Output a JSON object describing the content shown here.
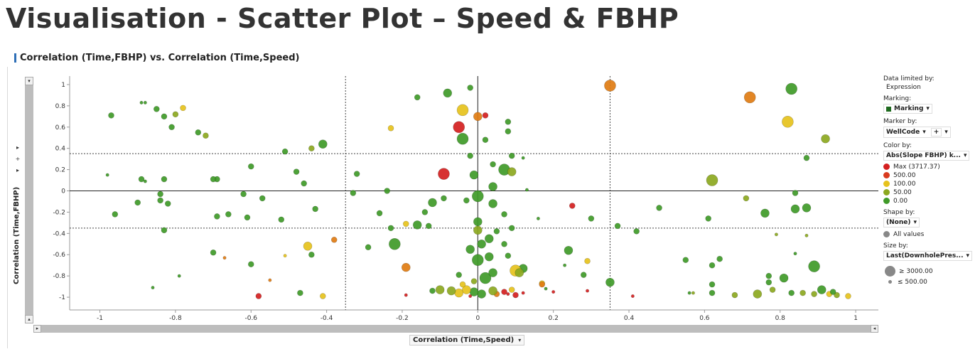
{
  "page_title": "Visualisation - Scatter Plot – Speed & FBHP",
  "viz_title": "Correlation (Time,FBHP) vs. Correlation (Time,Speed)",
  "chart_data": {
    "type": "scatter",
    "title": "Correlation (Time,FBHP) vs. Correlation (Time,Speed)",
    "xlabel": "Correlation (Time,Speed)",
    "ylabel": "Correlation (Time,FBHP)",
    "xlim": [
      -1.08,
      1.06
    ],
    "ylim": [
      -1.12,
      1.08
    ],
    "xticks": [
      -1,
      -0.8,
      -0.6,
      -0.4,
      -0.2,
      0,
      0.2,
      0.4,
      0.6,
      0.8,
      1
    ],
    "yticks": [
      1,
      0.8,
      0.6,
      0.4,
      0.2,
      0,
      -0.2,
      -0.4,
      -0.6,
      -0.8,
      -1
    ],
    "xtick_labels": [
      "-1",
      "-0.8",
      "-0.6",
      "-0.4",
      "-0.2",
      "0",
      "0.2",
      "0.4",
      "0.6",
      "0.8",
      "1"
    ],
    "ytick_labels": [
      "1",
      "0.8",
      "0.6",
      "0.4",
      "0.2",
      "0",
      "-0.2",
      "-0.4",
      "-0.6",
      "-0.8",
      "-1"
    ],
    "reference_lines": {
      "x_dotted": [
        -0.35,
        0.35
      ],
      "y_dotted": [
        0.35,
        -0.35
      ],
      "x_solid": 0,
      "y_solid": 0
    },
    "grid": false,
    "legend_position": "right",
    "colors": {
      "max": "#d42020",
      "500": "#d93a1f",
      "100": "#e6c21c",
      "50": "#8ca81f",
      "0": "#3f9a28",
      "orange": "#e07c12"
    },
    "points": [
      {
        "x": 0.35,
        "y": 0.99,
        "s": 3,
        "c": "orange"
      },
      {
        "x": 0.83,
        "y": 0.96,
        "s": 3,
        "c": "0"
      },
      {
        "x": 0.72,
        "y": 0.88,
        "s": 3,
        "c": "orange"
      },
      {
        "x": 0.82,
        "y": 0.65,
        "s": 3,
        "c": "100"
      },
      {
        "x": 0.92,
        "y": 0.49,
        "s": 2,
        "c": "50"
      },
      {
        "x": 0.62,
        "y": 0.1,
        "s": 3,
        "c": "50"
      },
      {
        "x": 0.87,
        "y": 0.31,
        "s": 1,
        "c": "0"
      },
      {
        "x": 0.84,
        "y": -0.02,
        "s": 1,
        "c": "0"
      },
      {
        "x": 0.71,
        "y": -0.07,
        "s": 1,
        "c": "50"
      },
      {
        "x": 0.76,
        "y": -0.21,
        "s": 2,
        "c": "0"
      },
      {
        "x": 0.84,
        "y": -0.17,
        "s": 2,
        "c": "0"
      },
      {
        "x": 0.87,
        "y": -0.16,
        "s": 2,
        "c": "0"
      },
      {
        "x": 0.48,
        "y": -0.16,
        "s": 1,
        "c": "0"
      },
      {
        "x": 0.61,
        "y": -0.26,
        "s": 1,
        "c": "0"
      },
      {
        "x": 0.87,
        "y": -0.42,
        "s": 0,
        "c": "50"
      },
      {
        "x": 0.79,
        "y": -0.41,
        "s": 0,
        "c": "50"
      },
      {
        "x": 0.84,
        "y": -0.59,
        "s": 0,
        "c": "0"
      },
      {
        "x": 0.89,
        "y": -0.71,
        "s": 3,
        "c": "0"
      },
      {
        "x": 0.64,
        "y": -0.64,
        "s": 1,
        "c": "0"
      },
      {
        "x": 0.62,
        "y": -0.7,
        "s": 1,
        "c": "0"
      },
      {
        "x": 0.55,
        "y": -0.65,
        "s": 1,
        "c": "0"
      },
      {
        "x": 0.77,
        "y": -0.8,
        "s": 1,
        "c": "0"
      },
      {
        "x": 0.81,
        "y": -0.82,
        "s": 2,
        "c": "0"
      },
      {
        "x": 0.77,
        "y": -0.86,
        "s": 1,
        "c": "0"
      },
      {
        "x": 0.62,
        "y": -0.88,
        "s": 1,
        "c": "0"
      },
      {
        "x": 0.78,
        "y": -0.93,
        "s": 1,
        "c": "50"
      },
      {
        "x": 0.74,
        "y": -0.97,
        "s": 2,
        "c": "50"
      },
      {
        "x": 0.68,
        "y": -0.98,
        "s": 1,
        "c": "50"
      },
      {
        "x": 0.62,
        "y": -0.96,
        "s": 1,
        "c": "0"
      },
      {
        "x": 0.56,
        "y": -0.96,
        "s": 0,
        "c": "0"
      },
      {
        "x": 0.57,
        "y": -0.96,
        "s": 0,
        "c": "50"
      },
      {
        "x": 0.83,
        "y": -0.96,
        "s": 1,
        "c": "0"
      },
      {
        "x": 0.86,
        "y": -0.96,
        "s": 1,
        "c": "50"
      },
      {
        "x": 0.89,
        "y": -0.97,
        "s": 1,
        "c": "50"
      },
      {
        "x": 0.91,
        "y": -0.93,
        "s": 2,
        "c": "0"
      },
      {
        "x": 0.93,
        "y": -0.97,
        "s": 1,
        "c": "100"
      },
      {
        "x": 0.95,
        "y": -0.98,
        "s": 1,
        "c": "50"
      },
      {
        "x": 0.98,
        "y": -0.99,
        "s": 1,
        "c": "100"
      },
      {
        "x": 0.94,
        "y": -0.95,
        "s": 1,
        "c": "0"
      },
      {
        "x": 0.41,
        "y": -0.99,
        "s": 0,
        "c": "max"
      },
      {
        "x": 0.37,
        "y": -0.33,
        "s": 1,
        "c": "0"
      },
      {
        "x": 0.42,
        "y": -0.38,
        "s": 1,
        "c": "0"
      },
      {
        "x": 0.35,
        "y": -0.86,
        "s": 2,
        "c": "0"
      },
      {
        "x": 0.3,
        "y": -0.26,
        "s": 1,
        "c": "0"
      },
      {
        "x": 0.24,
        "y": -0.56,
        "s": 2,
        "c": "0"
      },
      {
        "x": 0.29,
        "y": -0.66,
        "s": 1,
        "c": "100"
      },
      {
        "x": 0.28,
        "y": -0.79,
        "s": 1,
        "c": "0"
      },
      {
        "x": 0.25,
        "y": -0.14,
        "s": 1,
        "c": "max"
      },
      {
        "x": 0.29,
        "y": -0.94,
        "s": 0,
        "c": "max"
      },
      {
        "x": 0.23,
        "y": -0.7,
        "s": 0,
        "c": "0"
      },
      {
        "x": 0.17,
        "y": -0.87,
        "s": 1,
        "c": "100"
      },
      {
        "x": 0.17,
        "y": -0.88,
        "s": 1,
        "c": "orange"
      },
      {
        "x": 0.12,
        "y": -0.73,
        "s": 2,
        "c": "0"
      },
      {
        "x": 0.1,
        "y": -0.75,
        "s": 3,
        "c": "100"
      },
      {
        "x": 0.11,
        "y": -0.77,
        "s": 2,
        "c": "50"
      },
      {
        "x": 0.08,
        "y": -0.61,
        "s": 1,
        "c": "0"
      },
      {
        "x": 0.07,
        "y": -0.95,
        "s": 1,
        "c": "max"
      },
      {
        "x": 0.1,
        "y": -0.98,
        "s": 1,
        "c": "max"
      },
      {
        "x": 0.12,
        "y": -0.96,
        "s": 0,
        "c": "max"
      },
      {
        "x": 0.09,
        "y": -0.93,
        "s": 1,
        "c": "100"
      },
      {
        "x": 0.05,
        "y": -0.97,
        "s": 1,
        "c": "orange"
      },
      {
        "x": 0.04,
        "y": -0.94,
        "s": 2,
        "c": "50"
      },
      {
        "x": 0.01,
        "y": -0.97,
        "s": 2,
        "c": "0"
      },
      {
        "x": -0.01,
        "y": -0.95,
        "s": 2,
        "c": "0"
      },
      {
        "x": -0.03,
        "y": -0.93,
        "s": 2,
        "c": "100"
      },
      {
        "x": -0.05,
        "y": -0.96,
        "s": 2,
        "c": "100"
      },
      {
        "x": -0.07,
        "y": -0.94,
        "s": 2,
        "c": "50"
      },
      {
        "x": -0.1,
        "y": -0.93,
        "s": 2,
        "c": "50"
      },
      {
        "x": -0.12,
        "y": -0.94,
        "s": 1,
        "c": "0"
      },
      {
        "x": -0.19,
        "y": -0.98,
        "s": 0,
        "c": "max"
      },
      {
        "x": -0.02,
        "y": -0.99,
        "s": 0,
        "c": "max"
      },
      {
        "x": 0.02,
        "y": -0.82,
        "s": 3,
        "c": "0"
      },
      {
        "x": 0.04,
        "y": -0.77,
        "s": 2,
        "c": "0"
      },
      {
        "x": -0.01,
        "y": -0.85,
        "s": 1,
        "c": "50"
      },
      {
        "x": -0.04,
        "y": -0.88,
        "s": 1,
        "c": "100"
      },
      {
        "x": -0.05,
        "y": -0.79,
        "s": 1,
        "c": "0"
      },
      {
        "x": 0.0,
        "y": -0.65,
        "s": 3,
        "c": "0"
      },
      {
        "x": 0.03,
        "y": -0.62,
        "s": 2,
        "c": "0"
      },
      {
        "x": -0.02,
        "y": -0.55,
        "s": 2,
        "c": "0"
      },
      {
        "x": 0.01,
        "y": -0.5,
        "s": 2,
        "c": "0"
      },
      {
        "x": 0.03,
        "y": -0.45,
        "s": 2,
        "c": "0"
      },
      {
        "x": 0.0,
        "y": -0.37,
        "s": 2,
        "c": "50"
      },
      {
        "x": 0.07,
        "y": -0.5,
        "s": 1,
        "c": "0"
      },
      {
        "x": 0.09,
        "y": -0.35,
        "s": 1,
        "c": "0"
      },
      {
        "x": 0.05,
        "y": -0.38,
        "s": 1,
        "c": "0"
      },
      {
        "x": 0.0,
        "y": -0.29,
        "s": 2,
        "c": "0"
      },
      {
        "x": 0.07,
        "y": -0.22,
        "s": 1,
        "c": "0"
      },
      {
        "x": 0.0,
        "y": -0.05,
        "s": 3,
        "c": "0"
      },
      {
        "x": -0.03,
        "y": -0.09,
        "s": 1,
        "c": "0"
      },
      {
        "x": 0.04,
        "y": -0.12,
        "s": 2,
        "c": "0"
      },
      {
        "x": 0.04,
        "y": 0.04,
        "s": 2,
        "c": "0"
      },
      {
        "x": -0.01,
        "y": 0.15,
        "s": 2,
        "c": "0"
      },
      {
        "x": 0.07,
        "y": 0.2,
        "s": 3,
        "c": "0"
      },
      {
        "x": 0.09,
        "y": 0.18,
        "s": 2,
        "c": "50"
      },
      {
        "x": 0.04,
        "y": 0.25,
        "s": 1,
        "c": "0"
      },
      {
        "x": -0.09,
        "y": 0.16,
        "s": 3,
        "c": "max"
      },
      {
        "x": -0.02,
        "y": 0.33,
        "s": 1,
        "c": "0"
      },
      {
        "x": 0.09,
        "y": 0.33,
        "s": 1,
        "c": "0"
      },
      {
        "x": -0.04,
        "y": 0.49,
        "s": 3,
        "c": "0"
      },
      {
        "x": -0.05,
        "y": 0.6,
        "s": 3,
        "c": "max"
      },
      {
        "x": 0.0,
        "y": 0.7,
        "s": 2,
        "c": "orange"
      },
      {
        "x": -0.04,
        "y": 0.76,
        "s": 3,
        "c": "100"
      },
      {
        "x": -0.08,
        "y": 0.92,
        "s": 2,
        "c": "0"
      },
      {
        "x": -0.02,
        "y": 0.97,
        "s": 1,
        "c": "0"
      },
      {
        "x": 0.02,
        "y": 0.71,
        "s": 1,
        "c": "max"
      },
      {
        "x": 0.08,
        "y": 0.65,
        "s": 1,
        "c": "0"
      },
      {
        "x": 0.08,
        "y": 0.56,
        "s": 1,
        "c": "0"
      },
      {
        "x": 0.02,
        "y": 0.48,
        "s": 1,
        "c": "0"
      },
      {
        "x": -0.16,
        "y": 0.88,
        "s": 1,
        "c": "0"
      },
      {
        "x": -0.23,
        "y": 0.59,
        "s": 1,
        "c": "100"
      },
      {
        "x": -0.09,
        "y": -0.07,
        "s": 1,
        "c": "0"
      },
      {
        "x": -0.12,
        "y": -0.11,
        "s": 2,
        "c": "0"
      },
      {
        "x": -0.14,
        "y": -0.2,
        "s": 1,
        "c": "0"
      },
      {
        "x": -0.16,
        "y": -0.32,
        "s": 2,
        "c": "0"
      },
      {
        "x": -0.13,
        "y": -0.33,
        "s": 1,
        "c": "0"
      },
      {
        "x": -0.19,
        "y": -0.31,
        "s": 1,
        "c": "100"
      },
      {
        "x": -0.22,
        "y": -0.5,
        "s": 3,
        "c": "0"
      },
      {
        "x": -0.23,
        "y": -0.35,
        "s": 1,
        "c": "0"
      },
      {
        "x": -0.29,
        "y": -0.53,
        "s": 1,
        "c": "0"
      },
      {
        "x": -0.19,
        "y": -0.72,
        "s": 2,
        "c": "orange"
      },
      {
        "x": -0.26,
        "y": -0.21,
        "s": 1,
        "c": "0"
      },
      {
        "x": -0.24,
        "y": 0.0,
        "s": 1,
        "c": "0"
      },
      {
        "x": -0.32,
        "y": 0.16,
        "s": 1,
        "c": "0"
      },
      {
        "x": -0.33,
        "y": -0.02,
        "s": 1,
        "c": "0"
      },
      {
        "x": -0.38,
        "y": -0.46,
        "s": 1,
        "c": "orange"
      },
      {
        "x": -0.45,
        "y": -0.52,
        "s": 2,
        "c": "100"
      },
      {
        "x": -0.44,
        "y": -0.6,
        "s": 1,
        "c": "0"
      },
      {
        "x": -0.47,
        "y": -0.96,
        "s": 1,
        "c": "0"
      },
      {
        "x": -0.41,
        "y": -0.99,
        "s": 1,
        "c": "100"
      },
      {
        "x": -0.43,
        "y": -0.17,
        "s": 1,
        "c": "0"
      },
      {
        "x": -0.46,
        "y": 0.07,
        "s": 1,
        "c": "0"
      },
      {
        "x": -0.48,
        "y": 0.18,
        "s": 1,
        "c": "0"
      },
      {
        "x": -0.51,
        "y": 0.37,
        "s": 1,
        "c": "0"
      },
      {
        "x": -0.44,
        "y": 0.4,
        "s": 1,
        "c": "50"
      },
      {
        "x": -0.41,
        "y": 0.44,
        "s": 2,
        "c": "0"
      },
      {
        "x": -0.52,
        "y": -0.27,
        "s": 1,
        "c": "0"
      },
      {
        "x": -0.51,
        "y": -0.61,
        "s": 0,
        "c": "100"
      },
      {
        "x": -0.57,
        "y": -0.07,
        "s": 1,
        "c": "0"
      },
      {
        "x": -0.6,
        "y": 0.23,
        "s": 1,
        "c": "0"
      },
      {
        "x": -0.62,
        "y": -0.03,
        "s": 1,
        "c": "0"
      },
      {
        "x": -0.61,
        "y": -0.25,
        "s": 1,
        "c": "0"
      },
      {
        "x": -0.6,
        "y": -0.69,
        "s": 1,
        "c": "0"
      },
      {
        "x": -0.58,
        "y": -0.99,
        "s": 1,
        "c": "max"
      },
      {
        "x": -0.55,
        "y": -0.84,
        "s": 0,
        "c": "orange"
      },
      {
        "x": -0.66,
        "y": -0.22,
        "s": 1,
        "c": "0"
      },
      {
        "x": -0.69,
        "y": -0.24,
        "s": 1,
        "c": "0"
      },
      {
        "x": -0.69,
        "y": 0.11,
        "s": 1,
        "c": "0"
      },
      {
        "x": -0.7,
        "y": 0.11,
        "s": 1,
        "c": "0"
      },
      {
        "x": -0.7,
        "y": -0.58,
        "s": 1,
        "c": "0"
      },
      {
        "x": -0.67,
        "y": -0.63,
        "s": 0,
        "c": "orange"
      },
      {
        "x": -0.72,
        "y": 0.52,
        "s": 1,
        "c": "50"
      },
      {
        "x": -0.74,
        "y": 0.55,
        "s": 1,
        "c": "0"
      },
      {
        "x": -0.78,
        "y": 0.78,
        "s": 1,
        "c": "100"
      },
      {
        "x": -0.8,
        "y": 0.72,
        "s": 1,
        "c": "50"
      },
      {
        "x": -0.81,
        "y": 0.6,
        "s": 1,
        "c": "0"
      },
      {
        "x": -0.83,
        "y": 0.7,
        "s": 1,
        "c": "0"
      },
      {
        "x": -0.85,
        "y": 0.77,
        "s": 1,
        "c": "0"
      },
      {
        "x": -0.88,
        "y": 0.83,
        "s": 0,
        "c": "0"
      },
      {
        "x": -0.89,
        "y": 0.83,
        "s": 0,
        "c": "0"
      },
      {
        "x": -0.97,
        "y": 0.71,
        "s": 1,
        "c": "0"
      },
      {
        "x": -0.98,
        "y": 0.15,
        "s": 0,
        "c": "0"
      },
      {
        "x": -0.89,
        "y": 0.11,
        "s": 1,
        "c": "0"
      },
      {
        "x": -0.88,
        "y": 0.09,
        "s": 0,
        "c": "0"
      },
      {
        "x": -0.83,
        "y": 0.11,
        "s": 1,
        "c": "0"
      },
      {
        "x": -0.84,
        "y": -0.03,
        "s": 1,
        "c": "0"
      },
      {
        "x": -0.84,
        "y": -0.09,
        "s": 1,
        "c": "0"
      },
      {
        "x": -0.82,
        "y": -0.12,
        "s": 1,
        "c": "0"
      },
      {
        "x": -0.9,
        "y": -0.11,
        "s": 1,
        "c": "0"
      },
      {
        "x": -0.96,
        "y": -0.22,
        "s": 1,
        "c": "0"
      },
      {
        "x": -0.83,
        "y": -0.37,
        "s": 1,
        "c": "0"
      },
      {
        "x": -0.79,
        "y": -0.8,
        "s": 0,
        "c": "0"
      },
      {
        "x": -0.86,
        "y": -0.91,
        "s": 0,
        "c": "0"
      },
      {
        "x": 0.12,
        "y": 0.31,
        "s": 0,
        "c": "0"
      },
      {
        "x": 0.13,
        "y": 0.01,
        "s": 0,
        "c": "0"
      },
      {
        "x": 0.16,
        "y": -0.26,
        "s": 0,
        "c": "0"
      },
      {
        "x": 0.18,
        "y": -0.92,
        "s": 0,
        "c": "0"
      },
      {
        "x": 0.2,
        "y": -0.95,
        "s": 0,
        "c": "max"
      },
      {
        "x": 0.08,
        "y": -0.97,
        "s": 0,
        "c": "max"
      }
    ]
  },
  "vscroll": {
    "top_btn": "▾",
    "bottom_btn": "▴"
  },
  "hscroll": {
    "left_btn": "▸",
    "right_btn": "◂"
  },
  "side_tools": [
    "▸",
    "+",
    "▸"
  ],
  "xaxis_selector": {
    "label": "Correlation (Time,Speed)",
    "arrow": "▾"
  },
  "legend": {
    "data_limited_label": "Data limited by:",
    "data_limited_value": "Expression",
    "marking_label": "Marking:",
    "marking_value": "Marking",
    "marker_by_label": "Marker by:",
    "marker_by_value": "WellCode",
    "marker_by_plus": "+",
    "color_by_label": "Color by:",
    "color_by_value": "Abs(Slope FBHP) k...",
    "color_items": [
      {
        "label": "Max (3717.37)",
        "color": "#d42020"
      },
      {
        "label": "500.00",
        "color": "#d93a1f"
      },
      {
        "label": "100.00",
        "color": "#e6c21c"
      },
      {
        "label": "50.00",
        "color": "#8ca81f"
      },
      {
        "label": "0.00",
        "color": "#3f9a28"
      }
    ],
    "shape_by_label": "Shape by:",
    "shape_by_value": "(None)",
    "shape_all": "All values",
    "size_by_label": "Size by:",
    "size_by_value": "Last(DownholePres...",
    "size_max": "≥ 3000.00",
    "size_min": "≤ 500.00",
    "arrow": "▾"
  }
}
